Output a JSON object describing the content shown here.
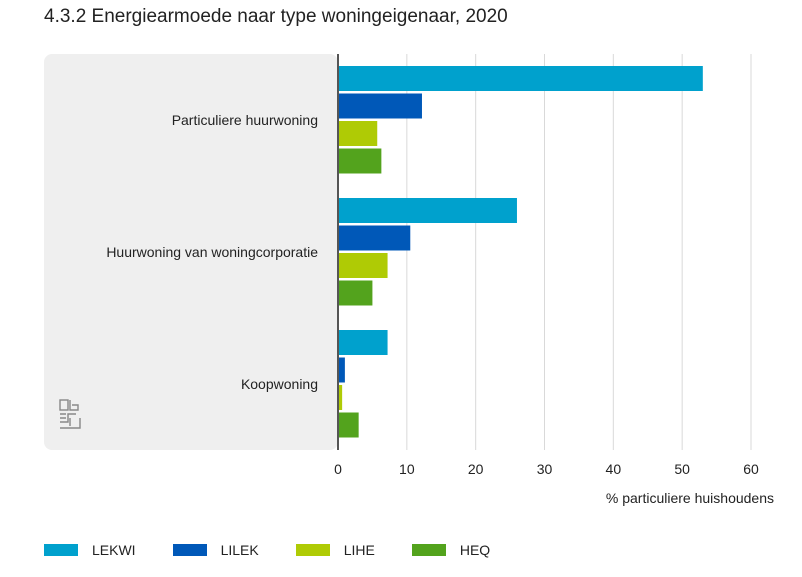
{
  "chart_data": {
    "type": "bar",
    "orientation": "horizontal",
    "title": "4.3.2 Energiearmoede naar type woningeigenaar, 2020",
    "xlabel": "% particuliere huishoudens",
    "ylabel": "",
    "xlim": [
      0,
      60
    ],
    "xticks": [
      "0",
      "10",
      "20",
      "30",
      "40",
      "50",
      "60"
    ],
    "grid": true,
    "legend_position": "bottom-left",
    "categories": [
      "Particuliere huurwoning",
      "Huurwoning van woningcorporatie",
      "Koopwoning"
    ],
    "series": [
      {
        "name": "LEKWI",
        "color": "#00a1cd",
        "values": [
          53.0,
          26.0,
          7.2
        ]
      },
      {
        "name": "LILEK",
        "color": "#0058b8",
        "values": [
          12.2,
          10.5,
          1.0
        ]
      },
      {
        "name": "LIHE",
        "color": "#afcb05",
        "values": [
          5.7,
          7.2,
          0.6
        ]
      },
      {
        "name": "HEQ",
        "color": "#53a31d",
        "values": [
          6.3,
          5.0,
          3.0
        ]
      }
    ]
  },
  "logo": {
    "icon": "cbs-logo-icon"
  }
}
